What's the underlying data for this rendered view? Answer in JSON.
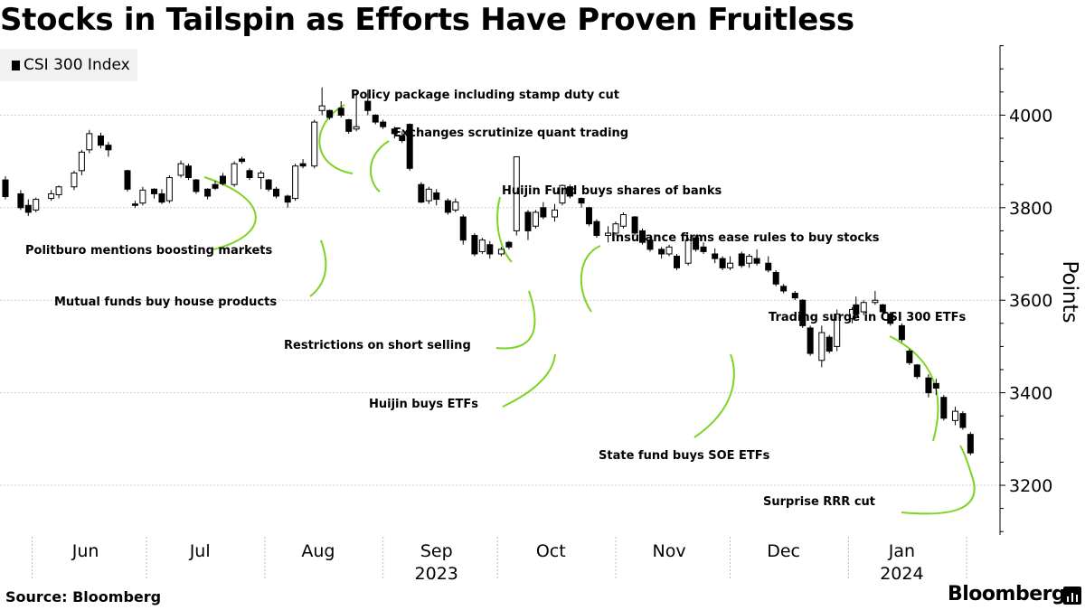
{
  "title": "Stocks in Tailspin as Efforts Have Proven Fruitless",
  "source": "Source: Bloomberg",
  "brand": "Bloomberg",
  "colors": {
    "annotation_line": "#7ed321",
    "up_fill": "#ffffff",
    "down_fill": "#000000",
    "grid": "#cccccc"
  },
  "chart_data": {
    "type": "candlestick",
    "legend": [
      {
        "name": "CSI 300 Index",
        "color": "#000000"
      }
    ],
    "legend_position": "top-left",
    "ylabel": "Points",
    "yaxis_side": "right",
    "yticks": [
      3200,
      3400,
      3600,
      3800,
      4000
    ],
    "ylim": [
      3100,
      4160
    ],
    "grid": true,
    "xaxis": {
      "months": [
        {
          "label": "Jun",
          "date": "2023-06-15"
        },
        {
          "label": "Jul",
          "date": "2023-07-15"
        },
        {
          "label": "Aug",
          "date": "2023-08-15"
        },
        {
          "label": "Sep",
          "date": "2023-09-15"
        },
        {
          "label": "Oct",
          "date": "2023-10-15"
        },
        {
          "label": "Nov",
          "date": "2023-11-15"
        },
        {
          "label": "Dec",
          "date": "2023-12-15"
        },
        {
          "label": "Jan",
          "date": "2024-01-15"
        }
      ],
      "month_starts": [
        "2023-06-01",
        "2023-07-01",
        "2023-08-01",
        "2023-09-01",
        "2023-10-01",
        "2023-11-01",
        "2023-12-01",
        "2024-01-01",
        "2024-02-01"
      ],
      "years": [
        {
          "label": "2023",
          "date": "2023-09-15"
        },
        {
          "label": "2024",
          "date": "2024-01-15"
        }
      ],
      "start": "2023-05-25",
      "end": "2024-02-05"
    },
    "candles": [
      {
        "date": "2023-05-25",
        "open": 3860,
        "high": 3868,
        "low": 3818,
        "close": 3824
      },
      {
        "date": "2023-05-29",
        "open": 3830,
        "high": 3838,
        "low": 3795,
        "close": 3800
      },
      {
        "date": "2023-05-31",
        "open": 3805,
        "high": 3818,
        "low": 3782,
        "close": 3790
      },
      {
        "date": "2023-06-02",
        "open": 3795,
        "high": 3822,
        "low": 3790,
        "close": 3818
      },
      {
        "date": "2023-06-06",
        "open": 3820,
        "high": 3838,
        "low": 3815,
        "close": 3830
      },
      {
        "date": "2023-06-08",
        "open": 3828,
        "high": 3848,
        "low": 3820,
        "close": 3845
      },
      {
        "date": "2023-06-12",
        "open": 3845,
        "high": 3880,
        "low": 3838,
        "close": 3875
      },
      {
        "date": "2023-06-14",
        "open": 3880,
        "high": 3925,
        "low": 3870,
        "close": 3920
      },
      {
        "date": "2023-06-16",
        "open": 3925,
        "high": 3968,
        "low": 3918,
        "close": 3960
      },
      {
        "date": "2023-06-19",
        "open": 3955,
        "high": 3962,
        "low": 3928,
        "close": 3935
      },
      {
        "date": "2023-06-21",
        "open": 3935,
        "high": 3942,
        "low": 3910,
        "close": 3925
      },
      {
        "date": "2023-06-26",
        "open": 3880,
        "high": 3882,
        "low": 3835,
        "close": 3840
      },
      {
        "date": "2023-06-28",
        "open": 3808,
        "high": 3815,
        "low": 3800,
        "close": 3805
      },
      {
        "date": "2023-06-30",
        "open": 3810,
        "high": 3845,
        "low": 3805,
        "close": 3838
      },
      {
        "date": "2023-07-03",
        "open": 3840,
        "high": 3842,
        "low": 3820,
        "close": 3830
      },
      {
        "date": "2023-07-05",
        "open": 3830,
        "high": 3840,
        "low": 3808,
        "close": 3812
      },
      {
        "date": "2023-07-07",
        "open": 3815,
        "high": 3870,
        "low": 3810,
        "close": 3865
      },
      {
        "date": "2023-07-10",
        "open": 3870,
        "high": 3902,
        "low": 3865,
        "close": 3895
      },
      {
        "date": "2023-07-12",
        "open": 3890,
        "high": 3895,
        "low": 3860,
        "close": 3865
      },
      {
        "date": "2023-07-14",
        "open": 3860,
        "high": 3862,
        "low": 3830,
        "close": 3835
      },
      {
        "date": "2023-07-17",
        "open": 3840,
        "high": 3842,
        "low": 3818,
        "close": 3825
      },
      {
        "date": "2023-07-19",
        "open": 3850,
        "high": 3858,
        "low": 3838,
        "close": 3842
      },
      {
        "date": "2023-07-21",
        "open": 3868,
        "high": 3875,
        "low": 3848,
        "close": 3852
      },
      {
        "date": "2023-07-24",
        "open": 3850,
        "high": 3900,
        "low": 3845,
        "close": 3895
      },
      {
        "date": "2023-07-26",
        "open": 3905,
        "high": 3910,
        "low": 3895,
        "close": 3900
      },
      {
        "date": "2023-07-28",
        "open": 3880,
        "high": 3885,
        "low": 3860,
        "close": 3865
      },
      {
        "date": "2023-07-31",
        "open": 3865,
        "high": 3880,
        "low": 3840,
        "close": 3875
      },
      {
        "date": "2023-08-02",
        "open": 3860,
        "high": 3862,
        "low": 3835,
        "close": 3840
      },
      {
        "date": "2023-08-04",
        "open": 3840,
        "high": 3845,
        "low": 3820,
        "close": 3825
      },
      {
        "date": "2023-08-07",
        "open": 3825,
        "high": 3828,
        "low": 3800,
        "close": 3812
      },
      {
        "date": "2023-08-09",
        "open": 3820,
        "high": 3895,
        "low": 3815,
        "close": 3890
      },
      {
        "date": "2023-08-11",
        "open": 3895,
        "high": 3905,
        "low": 3885,
        "close": 3890
      },
      {
        "date": "2023-08-14",
        "open": 3890,
        "high": 3990,
        "low": 3885,
        "close": 3985
      },
      {
        "date": "2023-08-16",
        "open": 4010,
        "high": 4060,
        "low": 4000,
        "close": 4020
      },
      {
        "date": "2023-08-18",
        "open": 4010,
        "high": 4012,
        "low": 3990,
        "close": 3995
      },
      {
        "date": "2023-08-21",
        "open": 4015,
        "high": 4030,
        "low": 3995,
        "close": 4000
      },
      {
        "date": "2023-08-23",
        "open": 3990,
        "high": 3992,
        "low": 3960,
        "close": 3965
      },
      {
        "date": "2023-08-25",
        "open": 3970,
        "high": 4048,
        "low": 3965,
        "close": 3975
      },
      {
        "date": "2023-08-28",
        "open": 4030,
        "high": 4055,
        "low": 4000,
        "close": 4010
      },
      {
        "date": "2023-08-30",
        "open": 4000,
        "high": 4002,
        "low": 3980,
        "close": 3985
      },
      {
        "date": "2023-09-01",
        "open": 3985,
        "high": 3990,
        "low": 3970,
        "close": 3975
      },
      {
        "date": "2023-09-04",
        "open": 3970,
        "high": 3975,
        "low": 3950,
        "close": 3960
      },
      {
        "date": "2023-09-06",
        "open": 3955,
        "high": 3965,
        "low": 3940,
        "close": 3945
      },
      {
        "date": "2023-09-08",
        "open": 3980,
        "high": 3982,
        "low": 3880,
        "close": 3885
      },
      {
        "date": "2023-09-11",
        "open": 3850,
        "high": 3855,
        "low": 3810,
        "close": 3812
      },
      {
        "date": "2023-09-13",
        "open": 3815,
        "high": 3845,
        "low": 3808,
        "close": 3840
      },
      {
        "date": "2023-09-15",
        "open": 3832,
        "high": 3840,
        "low": 3805,
        "close": 3818
      },
      {
        "date": "2023-09-18",
        "open": 3815,
        "high": 3820,
        "low": 3785,
        "close": 3790
      },
      {
        "date": "2023-09-20",
        "open": 3795,
        "high": 3820,
        "low": 3790,
        "close": 3812
      },
      {
        "date": "2023-09-22",
        "open": 3780,
        "high": 3785,
        "low": 3720,
        "close": 3730
      },
      {
        "date": "2023-09-25",
        "open": 3740,
        "high": 3745,
        "low": 3695,
        "close": 3700
      },
      {
        "date": "2023-09-27",
        "open": 3705,
        "high": 3735,
        "low": 3700,
        "close": 3730
      },
      {
        "date": "2023-09-29",
        "open": 3720,
        "high": 3728,
        "low": 3690,
        "close": 3700
      },
      {
        "date": "2023-10-02",
        "open": 3700,
        "high": 3715,
        "low": 3695,
        "close": 3710
      },
      {
        "date": "2023-10-04",
        "open": 3725,
        "high": 3728,
        "low": 3710,
        "close": 3715
      },
      {
        "date": "2023-10-06",
        "open": 3750,
        "high": 3905,
        "low": 3740,
        "close": 3910
      },
      {
        "date": "2023-10-09",
        "open": 3790,
        "high": 3795,
        "low": 3730,
        "close": 3750
      },
      {
        "date": "2023-10-11",
        "open": 3760,
        "high": 3795,
        "low": 3755,
        "close": 3790
      },
      {
        "date": "2023-10-13",
        "open": 3800,
        "high": 3812,
        "low": 3775,
        "close": 3780
      },
      {
        "date": "2023-10-16",
        "open": 3780,
        "high": 3808,
        "low": 3770,
        "close": 3795
      },
      {
        "date": "2023-10-18",
        "open": 3810,
        "high": 3850,
        "low": 3805,
        "close": 3848
      },
      {
        "date": "2023-10-20",
        "open": 3845,
        "high": 3850,
        "low": 3820,
        "close": 3825
      },
      {
        "date": "2023-10-23",
        "open": 3820,
        "high": 3822,
        "low": 3800,
        "close": 3810
      },
      {
        "date": "2023-10-25",
        "open": 3800,
        "high": 3802,
        "low": 3760,
        "close": 3765
      },
      {
        "date": "2023-10-27",
        "open": 3770,
        "high": 3775,
        "low": 3735,
        "close": 3740
      },
      {
        "date": "2023-10-30",
        "open": 3740,
        "high": 3760,
        "low": 3725,
        "close": 3745
      },
      {
        "date": "2023-11-01",
        "open": 3745,
        "high": 3770,
        "low": 3740,
        "close": 3765
      },
      {
        "date": "2023-11-03",
        "open": 3760,
        "high": 3790,
        "low": 3755,
        "close": 3785
      },
      {
        "date": "2023-11-06",
        "open": 3780,
        "high": 3782,
        "low": 3740,
        "close": 3745
      },
      {
        "date": "2023-11-08",
        "open": 3750,
        "high": 3755,
        "low": 3720,
        "close": 3725
      },
      {
        "date": "2023-11-10",
        "open": 3730,
        "high": 3735,
        "low": 3705,
        "close": 3710
      },
      {
        "date": "2023-11-13",
        "open": 3710,
        "high": 3715,
        "low": 3690,
        "close": 3700
      },
      {
        "date": "2023-11-15",
        "open": 3700,
        "high": 3720,
        "low": 3695,
        "close": 3715
      },
      {
        "date": "2023-11-17",
        "open": 3695,
        "high": 3700,
        "low": 3665,
        "close": 3670
      },
      {
        "date": "2023-11-20",
        "open": 3680,
        "high": 3735,
        "low": 3675,
        "close": 3730
      },
      {
        "date": "2023-11-22",
        "open": 3735,
        "high": 3740,
        "low": 3705,
        "close": 3710
      },
      {
        "date": "2023-11-24",
        "open": 3715,
        "high": 3725,
        "low": 3700,
        "close": 3705
      },
      {
        "date": "2023-11-27",
        "open": 3700,
        "high": 3712,
        "low": 3680,
        "close": 3690
      },
      {
        "date": "2023-11-29",
        "open": 3690,
        "high": 3695,
        "low": 3665,
        "close": 3670
      },
      {
        "date": "2023-12-01",
        "open": 3670,
        "high": 3695,
        "low": 3665,
        "close": 3680
      },
      {
        "date": "2023-12-04",
        "open": 3700,
        "high": 3705,
        "low": 3670,
        "close": 3675
      },
      {
        "date": "2023-12-06",
        "open": 3680,
        "high": 3700,
        "low": 3670,
        "close": 3695
      },
      {
        "date": "2023-12-08",
        "open": 3690,
        "high": 3710,
        "low": 3675,
        "close": 3680
      },
      {
        "date": "2023-12-11",
        "open": 3680,
        "high": 3695,
        "low": 3660,
        "close": 3665
      },
      {
        "date": "2023-12-13",
        "open": 3660,
        "high": 3665,
        "low": 3630,
        "close": 3635
      },
      {
        "date": "2023-12-15",
        "open": 3630,
        "high": 3635,
        "low": 3615,
        "close": 3620
      },
      {
        "date": "2023-12-18",
        "open": 3615,
        "high": 3620,
        "low": 3600,
        "close": 3605
      },
      {
        "date": "2023-12-20",
        "open": 3600,
        "high": 3602,
        "low": 3540,
        "close": 3545
      },
      {
        "date": "2023-12-22",
        "open": 3540,
        "high": 3545,
        "low": 3480,
        "close": 3485
      },
      {
        "date": "2023-12-25",
        "open": 3470,
        "high": 3545,
        "low": 3455,
        "close": 3530
      },
      {
        "date": "2023-12-27",
        "open": 3520,
        "high": 3525,
        "low": 3485,
        "close": 3490
      },
      {
        "date": "2023-12-29",
        "open": 3500,
        "high": 3580,
        "low": 3490,
        "close": 3570
      },
      {
        "date": "2024-01-02",
        "open": 3560,
        "high": 3585,
        "low": 3550,
        "close": 3580
      },
      {
        "date": "2024-01-03",
        "open": 3590,
        "high": 3608,
        "low": 3560,
        "close": 3570
      },
      {
        "date": "2024-01-05",
        "open": 3575,
        "high": 3600,
        "low": 3568,
        "close": 3595
      },
      {
        "date": "2024-01-08",
        "open": 3595,
        "high": 3620,
        "low": 3590,
        "close": 3600
      },
      {
        "date": "2024-01-10",
        "open": 3590,
        "high": 3592,
        "low": 3570,
        "close": 3575
      },
      {
        "date": "2024-01-12",
        "open": 3570,
        "high": 3575,
        "low": 3545,
        "close": 3550
      },
      {
        "date": "2024-01-15",
        "open": 3545,
        "high": 3550,
        "low": 3510,
        "close": 3515
      },
      {
        "date": "2024-01-17",
        "open": 3490,
        "high": 3495,
        "low": 3460,
        "close": 3465
      },
      {
        "date": "2024-01-19",
        "open": 3460,
        "high": 3462,
        "low": 3430,
        "close": 3435
      },
      {
        "date": "2024-01-22",
        "open": 3432,
        "high": 3440,
        "low": 3390,
        "close": 3400
      },
      {
        "date": "2024-01-24",
        "open": 3420,
        "high": 3430,
        "low": 3395,
        "close": 3410
      },
      {
        "date": "2024-01-26",
        "open": 3390,
        "high": 3395,
        "low": 3340,
        "close": 3345
      },
      {
        "date": "2024-01-29",
        "open": 3340,
        "high": 3370,
        "low": 3330,
        "close": 3360
      },
      {
        "date": "2024-01-31",
        "open": 3355,
        "high": 3360,
        "low": 3320,
        "close": 3325
      },
      {
        "date": "2024-02-02",
        "open": 3310,
        "high": 3315,
        "low": 3265,
        "close": 3270
      }
    ],
    "annotations": [
      {
        "text": "Politburo mentions boosting markets"
      },
      {
        "text": "Mutual funds buy house products"
      },
      {
        "text": "Policy package including stamp duty cut"
      },
      {
        "text": "Exchanges scrutinize quant trading"
      },
      {
        "text": "Huijin Fund buys shares of banks"
      },
      {
        "text": "Restrictions on short selling"
      },
      {
        "text": "Huijin buys ETFs"
      },
      {
        "text": "Insurance firms ease rules to buy stocks"
      },
      {
        "text": "State fund buys SOE ETFs"
      },
      {
        "text": "Trading surge in CSI 300 ETFs"
      },
      {
        "text": "Surprise RRR cut"
      }
    ]
  }
}
